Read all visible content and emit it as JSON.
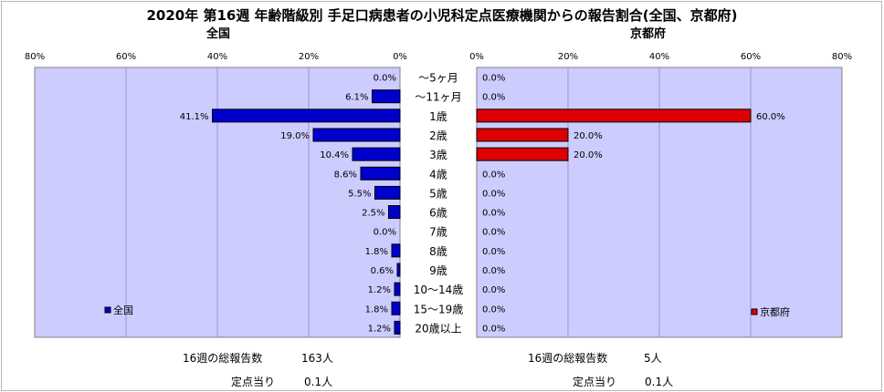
{
  "title": "2020年 第16週 年齢階級別 手足口病患者の小児科定点医療機関からの報告割合(全国、京都府)",
  "panels": {
    "left": {
      "subtitle": "全国",
      "legend": "全国"
    },
    "right": {
      "subtitle": "京都府",
      "legend": "京都府"
    }
  },
  "colors": {
    "national": "#0000cc",
    "kyoto": "#dd0000",
    "plot_bg": "#ccccff",
    "gridline": "#9999cc"
  },
  "footer": {
    "left_total_label": "16週の総報告数",
    "left_total_value": "163人",
    "left_per_label": "定点当り",
    "left_per_value": "0.1人",
    "right_total_label": "16週の総報告数",
    "right_total_value": "5人",
    "right_per_label": "定点当り",
    "right_per_value": "0.1人"
  },
  "chart_data": [
    {
      "type": "bar",
      "orientation": "horizontal",
      "direction": "reversed",
      "subtitle": "全国",
      "categories": [
        "～5ヶ月",
        "～11ヶ月",
        "1歳",
        "2歳",
        "3歳",
        "4歳",
        "5歳",
        "6歳",
        "7歳",
        "8歳",
        "9歳",
        "10～14歳",
        "15～19歳",
        "20歳以上"
      ],
      "series": [
        {
          "name": "全国",
          "values": [
            0.0,
            6.1,
            41.1,
            19.0,
            10.4,
            8.6,
            5.5,
            2.5,
            0.0,
            1.8,
            0.6,
            1.2,
            1.8,
            1.2
          ]
        }
      ],
      "data_labels": [
        "0.0%",
        "6.1%",
        "41.1%",
        "19.0%",
        "10.4%",
        "8.6%",
        "5.5%",
        "2.5%",
        "0.0%",
        "1.8%",
        "0.6%",
        "1.2%",
        "1.8%",
        "1.2%"
      ],
      "xlim": [
        0,
        80
      ],
      "xticks": [
        "80%",
        "60%",
        "40%",
        "20%",
        "0%"
      ],
      "grid": true,
      "legend": "bottom-left"
    },
    {
      "type": "bar",
      "orientation": "horizontal",
      "subtitle": "京都府",
      "categories": [
        "～5ヶ月",
        "～11ヶ月",
        "1歳",
        "2歳",
        "3歳",
        "4歳",
        "5歳",
        "6歳",
        "7歳",
        "8歳",
        "9歳",
        "10～14歳",
        "15～19歳",
        "20歳以上"
      ],
      "series": [
        {
          "name": "京都府",
          "values": [
            0.0,
            0.0,
            60.0,
            20.0,
            20.0,
            0.0,
            0.0,
            0.0,
            0.0,
            0.0,
            0.0,
            0.0,
            0.0,
            0.0
          ]
        }
      ],
      "data_labels": [
        "0.0%",
        "0.0%",
        "60.0%",
        "20.0%",
        "20.0%",
        "0.0%",
        "0.0%",
        "0.0%",
        "0.0%",
        "0.0%",
        "0.0%",
        "0.0%",
        "0.0%",
        "0.0%"
      ],
      "xlim": [
        0,
        80
      ],
      "xticks": [
        "0%",
        "20%",
        "40%",
        "60%",
        "80%"
      ],
      "grid": true,
      "legend": "bottom-right"
    }
  ]
}
